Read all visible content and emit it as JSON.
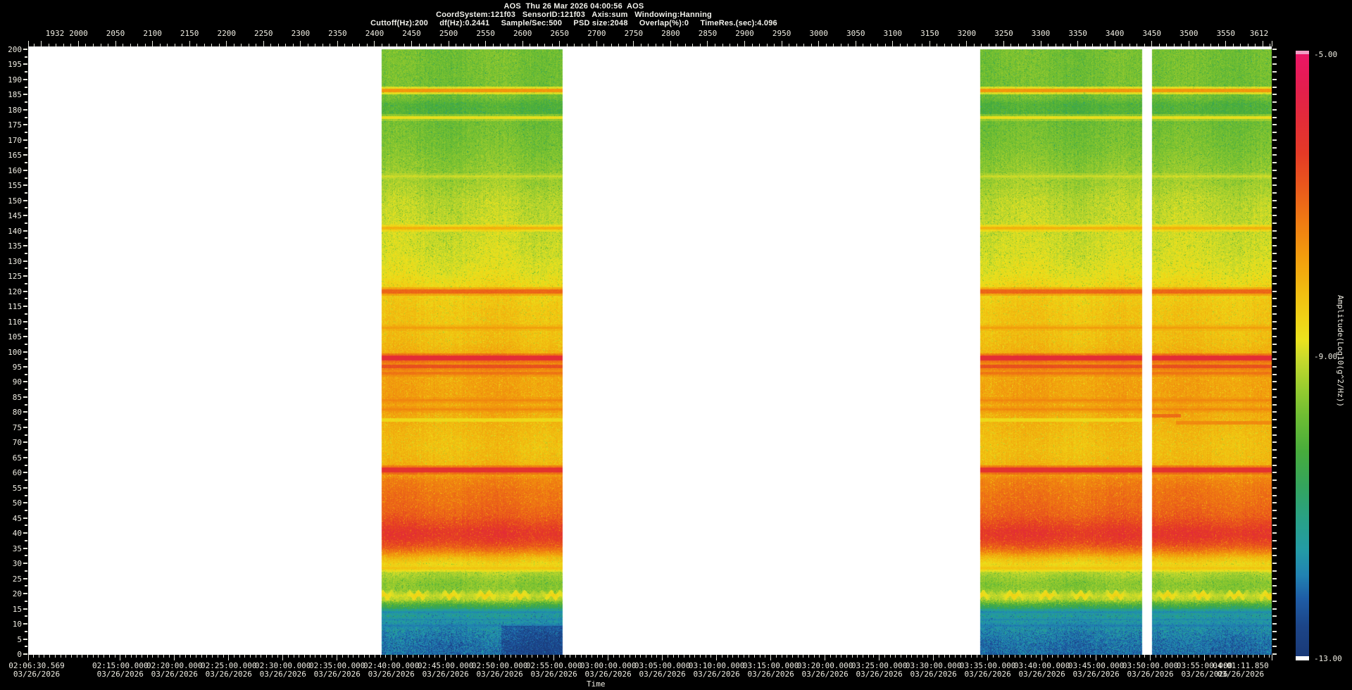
{
  "header": {
    "line1": "AOS  Thu 26 Mar 2026 04:00:56  AOS",
    "line2": "CoordSystem:121f03   SensorID:121f03   Axis:sum   Windowing:Hanning",
    "line3": "Cuttoff(Hz):200     df(Hz):0.2441     Sample/Sec:500     PSD size:2048     Overlap(%):0     TimeRes.(sec):4.096"
  },
  "colors": {
    "background": "#000000",
    "plot_background": "#ffffff",
    "axis_text": "#eeece2",
    "tick": "#e6e6dc"
  },
  "chart_data": {
    "type": "heatmap",
    "description": "Acoustic spectrogram: frequency 0-200 Hz vs time, PSD amplitude color coded, with white no-data gaps",
    "record_axis": {
      "position": "top",
      "range": [
        1932,
        3612
      ],
      "minor_step": 10,
      "ticks": [
        1932,
        2000,
        2050,
        2100,
        2150,
        2200,
        2250,
        2300,
        2350,
        2400,
        2450,
        2500,
        2550,
        2600,
        2650,
        2700,
        2750,
        2800,
        2850,
        2900,
        2950,
        3000,
        3050,
        3100,
        3150,
        3200,
        3250,
        3300,
        3350,
        3400,
        3450,
        3500,
        3550,
        3612
      ]
    },
    "freq_axis": {
      "position": "left",
      "range": [
        0,
        200
      ],
      "major_step": 5,
      "minor_step": 2.5
    },
    "time_axis": {
      "position": "bottom",
      "label": "Time",
      "date": "03/26/2026",
      "start": "02:06:30.569",
      "end": "04:01:11.850",
      "minor_step_sec": 30,
      "tick_labels": [
        "02:06:30.569",
        "02:15:00.000",
        "02:20:00.000",
        "02:25:00.000",
        "02:30:00.000",
        "02:35:00.000",
        "02:40:00.000",
        "02:45:00.000",
        "02:50:00.000",
        "02:55:00.000",
        "03:00:00.000",
        "03:05:00.000",
        "03:10:00.000",
        "03:15:00.000",
        "03:20:00.000",
        "03:25:00.000",
        "03:30:00.000",
        "03:35:00.000",
        "03:40:00.000",
        "03:45:00.000",
        "03:50:00.000",
        "03:55:00.000",
        "04:01:11.850"
      ]
    },
    "colorbar": {
      "label": "Amplitude(Log10(g^2/Hz))",
      "tick_labels": [
        "-5.00",
        "-9.00",
        "-13.00"
      ],
      "tick_values": [
        -5,
        -9,
        -13
      ],
      "range": [
        -5,
        -13
      ],
      "top_marker_color": "#f29cc4",
      "bottom_marker_color": "#ffffff",
      "scale_stops": [
        [
          0.0,
          "#ec1566"
        ],
        [
          0.055,
          "#e31e4e"
        ],
        [
          0.11,
          "#e32c38"
        ],
        [
          0.165,
          "#e53a26"
        ],
        [
          0.22,
          "#ea581c"
        ],
        [
          0.28,
          "#f07c12"
        ],
        [
          0.335,
          "#f29c0d"
        ],
        [
          0.39,
          "#f1ba10"
        ],
        [
          0.44,
          "#f0d316"
        ],
        [
          0.475,
          "#ebe31e"
        ],
        [
          0.505,
          "#c9da2c"
        ],
        [
          0.55,
          "#9ccd2f"
        ],
        [
          0.6,
          "#6fbe33"
        ],
        [
          0.66,
          "#47ac3c"
        ],
        [
          0.72,
          "#33a45f"
        ],
        [
          0.775,
          "#28a188"
        ],
        [
          0.825,
          "#239ba6"
        ],
        [
          0.865,
          "#2183b2"
        ],
        [
          0.905,
          "#1e5ca6"
        ],
        [
          0.95,
          "#1c4588"
        ],
        [
          1.0,
          "#1a3a78"
        ]
      ]
    },
    "data_regions": [
      {
        "record_start": 2410,
        "record_end": 2654,
        "blue_patch": true,
        "lines": [
          {
            "f": 77.5,
            "w": 0.5,
            "v": -8.75,
            "m": "d"
          }
        ]
      },
      {
        "record_start": 3218,
        "record_end": 3437,
        "blue_patch": false,
        "lines": [
          {
            "f": 77.5,
            "w": 0.5,
            "v": -8.75,
            "m": "d"
          }
        ]
      },
      {
        "record_start": 3450,
        "record_end": 3612,
        "blue_patch": false,
        "lines": [
          {
            "f": 79.0,
            "w": 0.6,
            "v": -6.9,
            "m": "b",
            "x1": 0.24
          },
          {
            "f": 76.6,
            "w": 0.5,
            "v": -7.35,
            "m": "b",
            "x0": 0.2
          }
        ]
      }
    ],
    "freq_profile": [
      [
        200,
        -9.75
      ],
      [
        188,
        -9.75
      ],
      [
        184,
        -9.8
      ],
      [
        182,
        -10.15
      ],
      [
        178,
        -10.15
      ],
      [
        176,
        -9.8
      ],
      [
        168,
        -9.7
      ],
      [
        160,
        -9.5
      ],
      [
        150,
        -9.15
      ],
      [
        141,
        -9.05
      ],
      [
        132,
        -8.95
      ],
      [
        126,
        -8.8
      ],
      [
        120,
        -8.45
      ],
      [
        114,
        -8.3
      ],
      [
        108,
        -8.25
      ],
      [
        103,
        -8.15
      ],
      [
        100,
        -8.0
      ],
      [
        97,
        -7.9
      ],
      [
        91,
        -7.8
      ],
      [
        87,
        -7.75
      ],
      [
        84,
        -7.8
      ],
      [
        81,
        -7.85
      ],
      [
        76,
        -8.05
      ],
      [
        72,
        -8.15
      ],
      [
        68,
        -8.2
      ],
      [
        64,
        -8.1
      ],
      [
        62,
        -8.0
      ],
      [
        60,
        -7.8
      ],
      [
        58,
        -7.35
      ],
      [
        54,
        -7.15
      ],
      [
        50,
        -7.05
      ],
      [
        46,
        -6.85
      ],
      [
        43,
        -6.5
      ],
      [
        41,
        -6.25
      ],
      [
        39.5,
        -6.2
      ],
      [
        38,
        -6.35
      ],
      [
        36,
        -6.7
      ],
      [
        34,
        -7.3
      ],
      [
        32,
        -8.1
      ],
      [
        30,
        -8.55
      ],
      [
        28.5,
        -8.8
      ],
      [
        27,
        -9.2
      ],
      [
        25,
        -9.45
      ],
      [
        23,
        -9.6
      ],
      [
        21,
        -9.5
      ],
      [
        19.5,
        -9.1
      ],
      [
        18,
        -9.3
      ],
      [
        16.5,
        -10.2
      ],
      [
        15,
        -10.9
      ],
      [
        13,
        -11.4
      ],
      [
        11,
        -11.5
      ],
      [
        9,
        -11.7
      ],
      [
        7,
        -11.9
      ],
      [
        5,
        -12.0
      ],
      [
        3,
        -12.1
      ],
      [
        0,
        -12.15
      ]
    ],
    "spectral_lines": [
      {
        "f": 186.5,
        "w": 0.6,
        "v": -7.25,
        "m": "b"
      },
      {
        "f": 177.5,
        "w": 0.5,
        "v": -8.55,
        "m": "b"
      },
      {
        "f": 158.0,
        "w": 0.35,
        "v": -8.95,
        "m": "b"
      },
      {
        "f": 141.0,
        "w": 0.5,
        "v": -7.85,
        "m": "b"
      },
      {
        "f": 120.0,
        "w": 0.65,
        "v": -6.7,
        "m": "b"
      },
      {
        "f": 108.0,
        "w": 0.4,
        "v": -7.65,
        "m": "b"
      },
      {
        "f": 98.0,
        "w": 0.85,
        "v": -5.6,
        "m": "b"
      },
      {
        "f": 95.2,
        "w": 0.5,
        "v": -6.45,
        "m": "b"
      },
      {
        "f": 93.0,
        "w": 0.4,
        "v": -7.05,
        "m": "b"
      },
      {
        "f": 84.0,
        "w": 0.4,
        "v": -7.35,
        "m": "b"
      },
      {
        "f": 81.0,
        "w": 0.35,
        "v": -7.35,
        "m": "b"
      },
      {
        "f": 61.0,
        "w": 0.85,
        "v": -5.8,
        "m": "b"
      },
      {
        "f": 28.5,
        "w": 0.5,
        "v": -8.25,
        "m": "b"
      },
      {
        "f": 14.0,
        "w": 0.35,
        "v": -11.9,
        "m": "d"
      },
      {
        "f": 11.5,
        "w": 0.3,
        "v": -11.9,
        "m": "d"
      },
      {
        "f": 9.5,
        "w": 0.3,
        "v": -12.0,
        "m": "d"
      }
    ]
  }
}
